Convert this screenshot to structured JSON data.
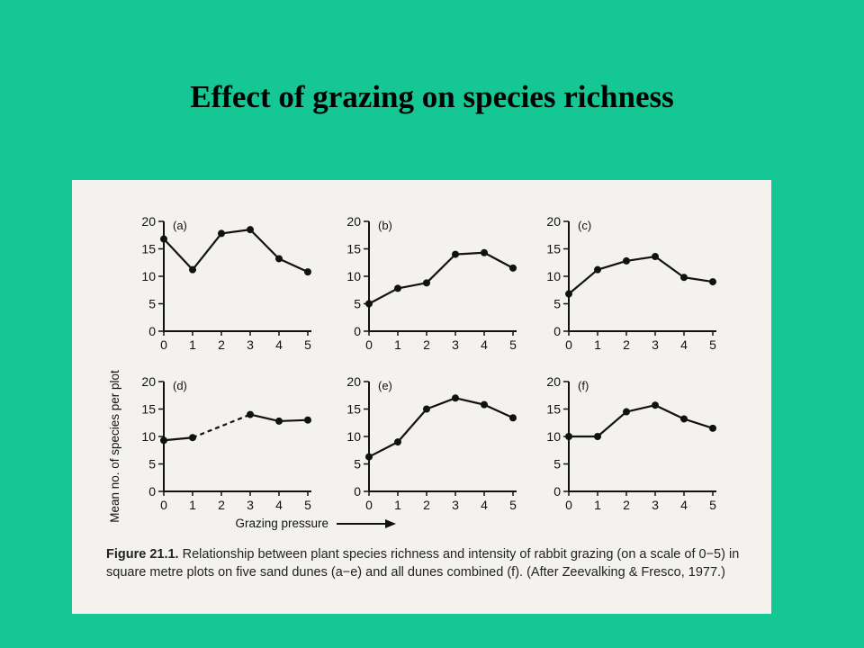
{
  "slide": {
    "title": "Effect of grazing on species richness"
  },
  "figure": {
    "ylabel": "Mean no. of species per plot",
    "xlabel": "Grazing pressure",
    "caption_label": "Figure 21.1.",
    "caption_text": "Relationship between plant species richness and intensity of rabbit grazing (on a scale of 0−5) in square metre plots on five sand dunes (a−e) and all dunes combined (f). (After Zeevalking & Fresco, 1977.)"
  },
  "chart_data": [
    {
      "type": "line",
      "panel_label": "(a)",
      "x": [
        0,
        1,
        2,
        3,
        4,
        5
      ],
      "values": [
        16.8,
        11.2,
        17.8,
        18.5,
        13.2,
        10.8
      ],
      "xlim": [
        0,
        5
      ],
      "ylim": [
        0,
        20
      ],
      "x_ticks": [
        "0",
        "1",
        "2",
        "3",
        "4",
        "5"
      ],
      "y_ticks": [
        "0",
        "5",
        "10",
        "15",
        "20"
      ],
      "dashed_segments": []
    },
    {
      "type": "line",
      "panel_label": "(b)",
      "x": [
        0,
        1,
        2,
        3,
        4,
        5
      ],
      "values": [
        5,
        7.8,
        8.8,
        14,
        14.3,
        11.5
      ],
      "xlim": [
        0,
        5
      ],
      "ylim": [
        0,
        20
      ],
      "x_ticks": [
        "0",
        "1",
        "2",
        "3",
        "4",
        "5"
      ],
      "y_ticks": [
        "0",
        "5",
        "10",
        "15",
        "20"
      ],
      "dashed_segments": []
    },
    {
      "type": "line",
      "panel_label": "(c)",
      "x": [
        0,
        1,
        2,
        3,
        4,
        5
      ],
      "values": [
        6.8,
        11.2,
        12.8,
        13.6,
        9.8,
        9
      ],
      "xlim": [
        0,
        5
      ],
      "ylim": [
        0,
        20
      ],
      "x_ticks": [
        "0",
        "1",
        "2",
        "3",
        "4",
        "5"
      ],
      "y_ticks": [
        "0",
        "5",
        "10",
        "15",
        "20"
      ],
      "dashed_segments": []
    },
    {
      "type": "line",
      "panel_label": "(d)",
      "x": [
        0,
        1,
        3,
        4,
        5
      ],
      "values": [
        9.3,
        9.8,
        14,
        12.8,
        13
      ],
      "xlim": [
        0,
        5
      ],
      "ylim": [
        0,
        20
      ],
      "x_ticks": [
        "0",
        "1",
        "2",
        "3",
        "4",
        "5"
      ],
      "y_ticks": [
        "0",
        "5",
        "10",
        "15",
        "20"
      ],
      "dashed_segments": [
        1
      ]
    },
    {
      "type": "line",
      "panel_label": "(e)",
      "x": [
        0,
        1,
        2,
        3,
        4,
        5
      ],
      "values": [
        6.3,
        9,
        15,
        17,
        15.8,
        13.4
      ],
      "xlim": [
        0,
        5
      ],
      "ylim": [
        0,
        20
      ],
      "x_ticks": [
        "0",
        "1",
        "2",
        "3",
        "4",
        "5"
      ],
      "y_ticks": [
        "0",
        "5",
        "10",
        "15",
        "20"
      ],
      "dashed_segments": []
    },
    {
      "type": "line",
      "panel_label": "(f)",
      "x": [
        0,
        1,
        2,
        3,
        4,
        5
      ],
      "values": [
        10,
        10,
        14.5,
        15.7,
        13.2,
        11.5
      ],
      "xlim": [
        0,
        5
      ],
      "ylim": [
        0,
        20
      ],
      "x_ticks": [
        "0",
        "1",
        "2",
        "3",
        "4",
        "5"
      ],
      "y_ticks": [
        "0",
        "5",
        "10",
        "15",
        "20"
      ],
      "dashed_segments": []
    }
  ]
}
